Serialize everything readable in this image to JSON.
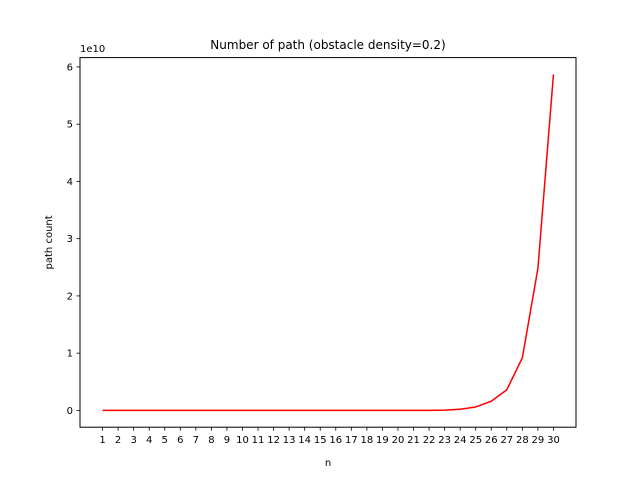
{
  "chart_data": {
    "type": "line",
    "title": "Number of path (obstacle density=0.2)",
    "xlabel": "n",
    "ylabel": "path count",
    "offset_label": "1e10",
    "categories": [
      "1",
      "2",
      "3",
      "4",
      "5",
      "6",
      "7",
      "8",
      "9",
      "10",
      "11",
      "12",
      "13",
      "14",
      "15",
      "16",
      "17",
      "18",
      "19",
      "20",
      "21",
      "22",
      "23",
      "24",
      "25",
      "26",
      "27",
      "28",
      "29",
      "30"
    ],
    "x": [
      1,
      2,
      3,
      4,
      5,
      6,
      7,
      8,
      9,
      10,
      11,
      12,
      13,
      14,
      15,
      16,
      17,
      18,
      19,
      20,
      21,
      22,
      23,
      24,
      25,
      26,
      27,
      28,
      29,
      30
    ],
    "series": [
      {
        "color": "#ff0000",
        "values": [
          0,
          0,
          0,
          0,
          0,
          0,
          0,
          0,
          0,
          0,
          0,
          0,
          0,
          0,
          0,
          0,
          0,
          0,
          0,
          0,
          0,
          10000000,
          50000000,
          200000000,
          600000000,
          1600000000,
          3600000000,
          9200000000,
          24800000000,
          58700000000
        ]
      }
    ],
    "yticks": [
      0,
      10000000000,
      20000000000,
      30000000000,
      40000000000,
      50000000000,
      60000000000
    ],
    "ytick_labels": [
      "0",
      "1",
      "2",
      "3",
      "4",
      "5",
      "6"
    ],
    "xlim": [
      -0.45,
      31.45
    ],
    "ylim": [
      -2935000000,
      61635000000
    ],
    "grid": false,
    "legend": "none"
  }
}
